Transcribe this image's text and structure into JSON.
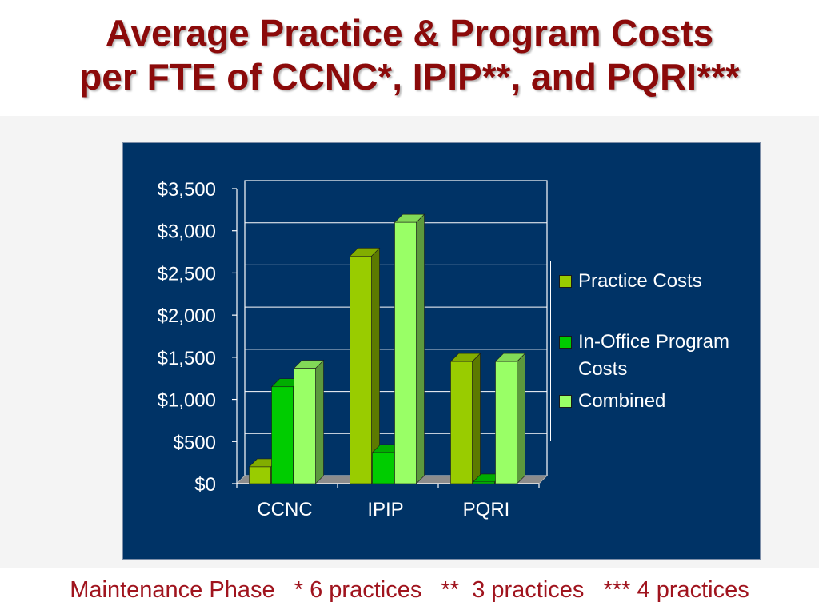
{
  "title": {
    "line1": "Average Practice & Program Costs",
    "line2": "per FTE of CCNC*, IPIP**, and PQRI***"
  },
  "footer": "Maintenance Phase   * 6 practices   **  3 practices   *** 4 practices",
  "chart_data": {
    "type": "bar",
    "categories": [
      "CCNC",
      "IPIP",
      "PQRI"
    ],
    "series": [
      {
        "name": "Practice Costs",
        "values": [
          200,
          2700,
          1450
        ],
        "color": "#99cc00"
      },
      {
        "name": "In-Office Program Costs",
        "values": [
          1150,
          370,
          20
        ],
        "color": "#00cc00"
      },
      {
        "name": "Combined",
        "values": [
          1370,
          3100,
          1450
        ],
        "color": "#99ff66"
      }
    ],
    "ylim": [
      0,
      3500
    ],
    "yticks": [
      0,
      500,
      1000,
      1500,
      2000,
      2500,
      3000,
      3500
    ],
    "ytick_labels": [
      "$0",
      "$500",
      "$1,000",
      "$1,500",
      "$2,000",
      "$2,500",
      "$3,000",
      "$3,500"
    ],
    "legend_position": "right",
    "grid": true,
    "background": "#003366",
    "style": "3d-column"
  }
}
